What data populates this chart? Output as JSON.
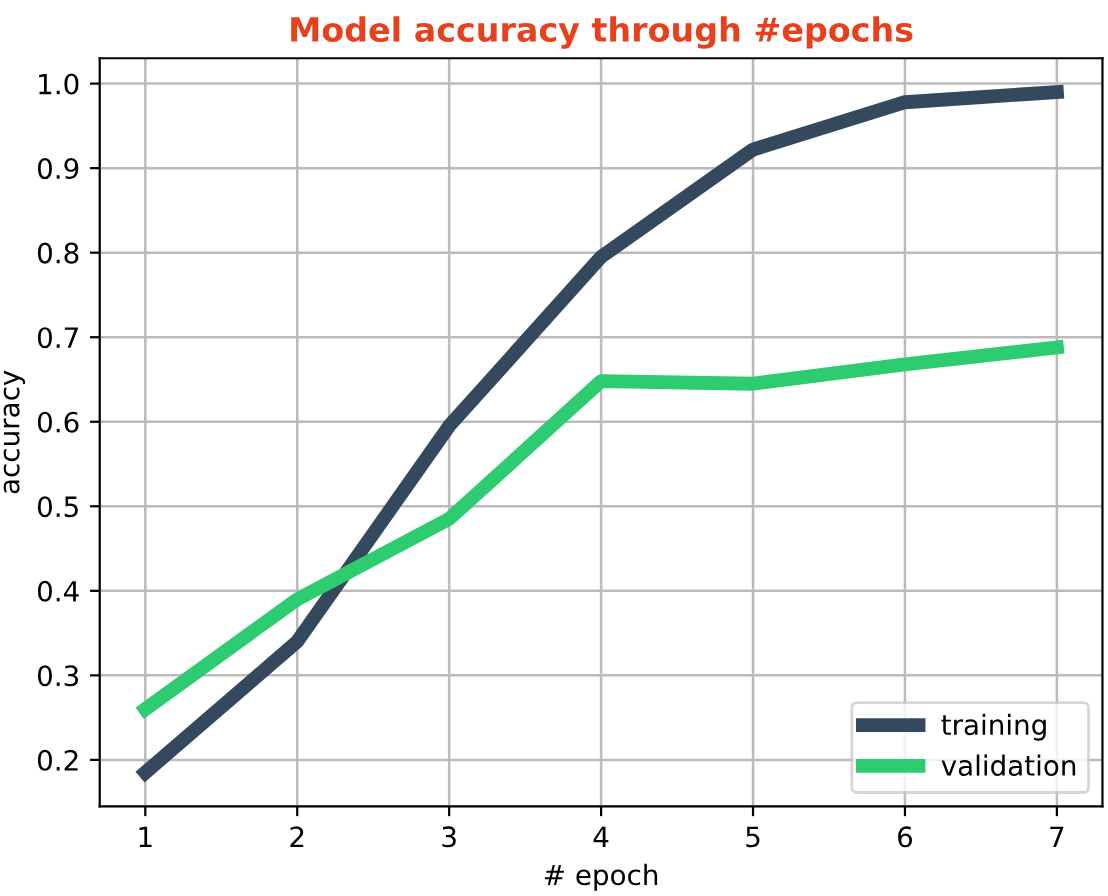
{
  "chart_data": {
    "type": "line",
    "title": "Model accuracy through #epochs",
    "xlabel": "# epoch",
    "ylabel": "accuracy",
    "x": [
      1,
      2,
      3,
      4,
      5,
      6,
      7
    ],
    "series": [
      {
        "name": "training",
        "color": "#34495e",
        "values": [
          0.185,
          0.34,
          0.595,
          0.795,
          0.922,
          0.978,
          0.99
        ]
      },
      {
        "name": "validation",
        "color": "#2ecc71",
        "values": [
          0.26,
          0.39,
          0.485,
          0.648,
          0.645,
          0.668,
          0.688
        ]
      }
    ],
    "xlim": [
      0.7,
      7.3
    ],
    "xticks": [
      1,
      2,
      3,
      4,
      5,
      6,
      7
    ],
    "ylim": [
      0.145,
      1.03
    ],
    "yticks": [
      {
        "value": 0.2,
        "label": "0.2"
      },
      {
        "value": 0.3,
        "label": "0.3"
      },
      {
        "value": 0.4,
        "label": "0.4"
      },
      {
        "value": 0.5,
        "label": "0.5"
      },
      {
        "value": 0.6,
        "label": "0.6"
      },
      {
        "value": 0.7,
        "label": "0.7"
      },
      {
        "value": 0.8,
        "label": "0.8"
      },
      {
        "value": 0.9,
        "label": "0.9"
      },
      {
        "value": 1.0,
        "label": "1.0"
      }
    ],
    "grid": true,
    "legend": "bottom right",
    "line_style": "solid"
  }
}
